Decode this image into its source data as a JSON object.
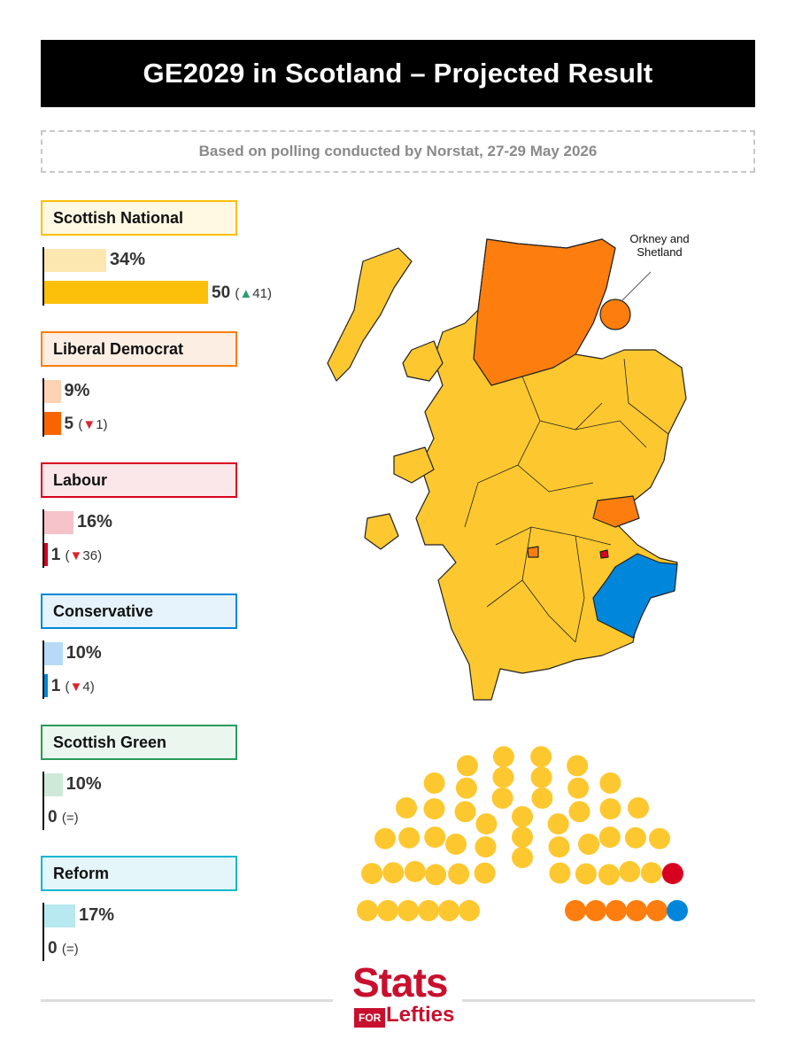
{
  "title": "GE2029 in Scotland – Projected Result",
  "subtitle": "Based on polling conducted by Norstat, 27-29 May 2026",
  "callout": {
    "line1": "Orkney and",
    "line2": "Shetland"
  },
  "logo": {
    "stats": "Stats",
    "for": "FOR",
    "lefties": "Lefties"
  },
  "colors": {
    "snp": "#fdc82f",
    "snp_bar": "#fcbf0a",
    "snp_light": "#fde7b0",
    "ld": "#fd7e0e",
    "ld_bar": "#fa6400",
    "ld_light": "#fdd2b5",
    "lab": "#d8001f",
    "lab_light": "#f5c3c9",
    "con": "#0087dc",
    "con_light": "#b6daf7",
    "grn": "#2a9a5a",
    "grn_light": "#cfe9d8",
    "ref": "#12b6cf",
    "ref_light": "#b8e9f0"
  },
  "chart_data": [
    {
      "type": "bar",
      "title": "",
      "series": [
        {
          "name": "Scottish National",
          "vote_share": 34,
          "vote_label": "34%",
          "seats": 50,
          "change": "41",
          "direction": "up"
        },
        {
          "name": "Liberal Democrat",
          "vote_share": 9,
          "vote_label": "9%",
          "seats": 5,
          "change": "1",
          "direction": "down"
        },
        {
          "name": "Labour",
          "vote_share": 16,
          "vote_label": "16%",
          "seats": 1,
          "change": "36",
          "direction": "down"
        },
        {
          "name": "Conservative",
          "vote_share": 10,
          "vote_label": "10%",
          "seats": 1,
          "change": "4",
          "direction": "down"
        },
        {
          "name": "Scottish Green",
          "vote_share": 10,
          "vote_label": "10%",
          "seats": 0,
          "change": "=",
          "direction": "same"
        },
        {
          "name": "Reform",
          "vote_share": 17,
          "vote_label": "17%",
          "seats": 0,
          "change": "=",
          "direction": "same"
        }
      ]
    },
    {
      "type": "parliament",
      "total_seats": 57,
      "seats": [
        {
          "party": "Scottish National",
          "count": 50
        },
        {
          "party": "Labour",
          "count": 1
        },
        {
          "party": "Liberal Democrat",
          "count": 5
        },
        {
          "party": "Conservative",
          "count": 1
        }
      ]
    }
  ]
}
